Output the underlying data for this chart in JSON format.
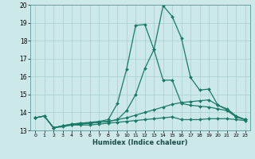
{
  "xlabel": "Humidex (Indice chaleur)",
  "xlim": [
    -0.5,
    23.5
  ],
  "ylim": [
    13,
    20
  ],
  "background_color": "#cce8e8",
  "grid_color": "#a8cece",
  "line_color": "#1a7a6a",
  "xticks": [
    0,
    1,
    2,
    3,
    4,
    5,
    6,
    7,
    8,
    9,
    10,
    11,
    12,
    13,
    14,
    15,
    16,
    17,
    18,
    19,
    20,
    21,
    22,
    23
  ],
  "yticks": [
    13,
    14,
    15,
    16,
    17,
    18,
    19,
    20
  ],
  "series": [
    {
      "x": [
        0,
        1,
        2,
        3,
        4,
        5,
        6,
        7,
        8,
        9,
        10,
        11,
        12,
        13,
        14,
        15,
        16,
        17,
        18,
        19,
        20,
        21,
        22,
        23
      ],
      "y": [
        13.7,
        13.8,
        13.15,
        13.2,
        13.3,
        13.3,
        13.3,
        13.35,
        13.4,
        13.45,
        13.5,
        13.55,
        13.6,
        13.65,
        13.7,
        13.75,
        13.6,
        13.6,
        13.6,
        13.65,
        13.65,
        13.65,
        13.6,
        13.55
      ]
    },
    {
      "x": [
        0,
        1,
        2,
        3,
        4,
        5,
        6,
        7,
        8,
        9,
        10,
        11,
        12,
        13,
        14,
        15,
        16,
        17,
        18,
        19,
        20,
        21,
        22,
        23
      ],
      "y": [
        13.7,
        13.8,
        13.15,
        13.25,
        13.3,
        13.35,
        13.4,
        13.45,
        13.5,
        13.6,
        13.7,
        13.85,
        14.0,
        14.15,
        14.3,
        14.45,
        14.55,
        14.6,
        14.65,
        14.7,
        14.4,
        14.2,
        13.8,
        13.6
      ]
    },
    {
      "x": [
        0,
        1,
        2,
        3,
        4,
        5,
        6,
        7,
        8,
        9,
        10,
        11,
        12,
        13,
        14,
        15,
        16,
        17,
        18,
        19,
        20,
        21,
        22,
        23
      ],
      "y": [
        13.7,
        13.8,
        13.15,
        13.25,
        13.35,
        13.4,
        13.4,
        13.45,
        13.5,
        13.6,
        14.1,
        15.0,
        16.45,
        17.5,
        15.8,
        15.8,
        14.5,
        14.4,
        14.35,
        14.3,
        14.2,
        14.1,
        13.75,
        13.6
      ]
    },
    {
      "x": [
        0,
        1,
        2,
        3,
        4,
        5,
        6,
        7,
        8,
        9,
        10,
        11,
        12,
        13,
        14,
        15,
        16,
        17,
        18,
        19,
        20,
        21,
        22,
        23
      ],
      "y": [
        13.7,
        13.8,
        13.15,
        13.25,
        13.35,
        13.4,
        13.45,
        13.5,
        13.6,
        14.5,
        16.4,
        18.85,
        18.9,
        17.5,
        19.95,
        19.35,
        18.15,
        15.95,
        15.25,
        15.3,
        14.4,
        14.15,
        13.75,
        13.6
      ]
    }
  ]
}
